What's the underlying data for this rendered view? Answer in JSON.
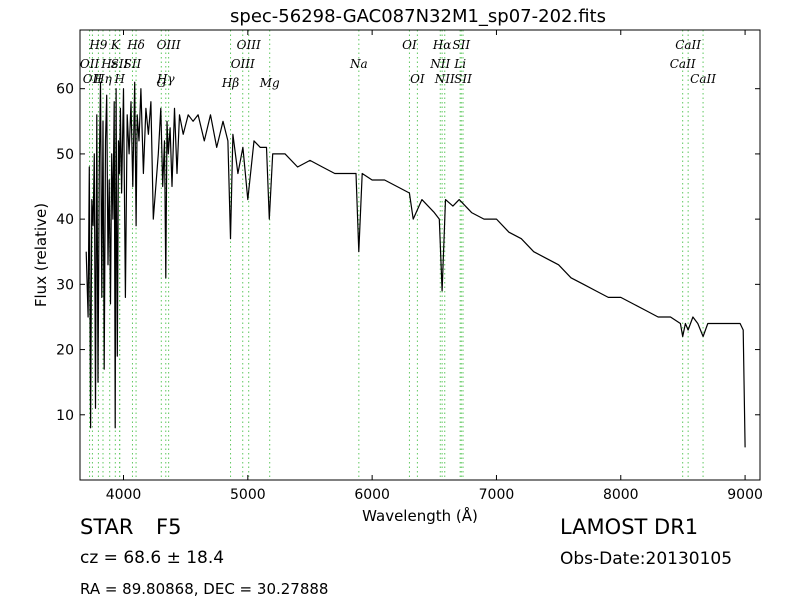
{
  "chart_data": {
    "type": "line",
    "title": "spec-56298-GAC087N32M1_sp07-202.fits",
    "xlabel": "Wavelength (Å)",
    "ylabel": "Flux (relative)",
    "xlim": [
      3650,
      9120
    ],
    "ylim": [
      0,
      69
    ],
    "xticks": [
      4000,
      5000,
      6000,
      7000,
      8000,
      9000
    ],
    "yticks": [
      10,
      20,
      30,
      40,
      50,
      60
    ],
    "grid": false,
    "series": [
      {
        "color": "#000000",
        "x": [
          3700,
          3715,
          3725,
          3735,
          3745,
          3755,
          3765,
          3775,
          3785,
          3795,
          3805,
          3815,
          3825,
          3835,
          3845,
          3855,
          3865,
          3875,
          3885,
          3895,
          3905,
          3915,
          3925,
          3933,
          3940,
          3950,
          3960,
          3968,
          3975,
          3985,
          4000,
          4015,
          4030,
          4045,
          4060,
          4075,
          4090,
          4101,
          4110,
          4125,
          4140,
          4160,
          4180,
          4200,
          4220,
          4240,
          4260,
          4280,
          4300,
          4315,
          4330,
          4340,
          4350,
          4360,
          4375,
          4390,
          4410,
          4430,
          4450,
          4480,
          4520,
          4560,
          4600,
          4650,
          4700,
          4750,
          4800,
          4840,
          4861,
          4880,
          4920,
          4960,
          5000,
          5050,
          5100,
          5150,
          5173,
          5200,
          5250,
          5300,
          5400,
          5500,
          5600,
          5700,
          5800,
          5870,
          5893,
          5920,
          6000,
          6100,
          6200,
          6300,
          6330,
          6400,
          6500,
          6540,
          6563,
          6590,
          6650,
          6700,
          6800,
          6900,
          7000,
          7100,
          7200,
          7300,
          7400,
          7500,
          7600,
          7700,
          7800,
          7900,
          8000,
          8100,
          8200,
          8300,
          8400,
          8480,
          8498,
          8520,
          8542,
          8580,
          8620,
          8662,
          8700,
          8800,
          8900,
          8960,
          8985,
          9000
        ],
        "y": [
          35,
          25,
          48,
          8,
          43,
          39,
          50,
          11,
          56,
          15,
          48,
          61,
          28,
          55,
          17,
          52,
          59,
          33,
          46,
          27,
          50,
          40,
          58,
          8,
          60,
          19,
          52,
          47,
          57,
          44,
          60,
          28,
          56,
          50,
          58,
          45,
          61,
          39,
          56,
          52,
          60,
          47,
          57,
          53,
          58,
          40,
          45,
          50,
          57,
          45,
          52,
          31,
          55,
          50,
          54,
          45,
          57,
          47,
          56,
          53,
          56,
          55,
          56,
          52,
          56,
          51,
          55,
          52,
          37,
          53,
          47,
          51,
          43,
          52,
          51,
          51,
          40,
          50,
          50,
          50,
          48,
          49,
          48,
          47,
          47,
          47,
          35,
          47,
          46,
          46,
          45,
          44,
          40,
          43,
          41,
          40,
          29,
          43,
          42,
          43,
          41,
          40,
          40,
          38,
          37,
          35,
          34,
          33,
          31,
          30,
          29,
          28,
          28,
          27,
          26,
          25,
          25,
          24,
          22,
          24,
          23,
          25,
          24,
          22,
          24,
          24,
          24,
          24,
          23,
          5
        ]
      }
    ],
    "spectral_lines": [
      {
        "wavelength": 3727,
        "label": "OII",
        "row": 1
      },
      {
        "wavelength": 3750,
        "label": "OII",
        "row": 2
      },
      {
        "wavelength": 3798,
        "label": "H9",
        "row": 0
      },
      {
        "wavelength": 3835,
        "label": "Hη",
        "row": 2
      },
      {
        "wavelength": 3889,
        "label": "Hε",
        "row": 1
      },
      {
        "wavelength": 3934,
        "label": "K",
        "row": 0
      },
      {
        "wavelength": 3968,
        "label": "SII",
        "row": 1
      },
      {
        "wavelength": 3970,
        "label": "H",
        "row": 2
      },
      {
        "wavelength": 4072,
        "label": "SII",
        "row": 1
      },
      {
        "wavelength": 4101,
        "label": "Hδ",
        "row": 0
      },
      {
        "wavelength": 4304,
        "label": "G",
        "row": 3
      },
      {
        "wavelength": 4340,
        "label": "Hγ",
        "row": 2
      },
      {
        "wavelength": 4363,
        "label": "OIII",
        "row": 0
      },
      {
        "wavelength": 4861,
        "label": "Hβ",
        "row": 3
      },
      {
        "wavelength": 4959,
        "label": "OIII",
        "row": 1
      },
      {
        "wavelength": 5007,
        "label": "OIII",
        "row": 0
      },
      {
        "wavelength": 5176,
        "label": "Mg",
        "row": 3
      },
      {
        "wavelength": 5893,
        "label": "Na",
        "row": 1
      },
      {
        "wavelength": 6300,
        "label": "OI",
        "row": 0
      },
      {
        "wavelength": 6364,
        "label": "OI",
        "row": 2
      },
      {
        "wavelength": 6548,
        "label": "NII",
        "row": 1
      },
      {
        "wavelength": 6563,
        "label": "Hα",
        "row": 0
      },
      {
        "wavelength": 6584,
        "label": "NII",
        "row": 2
      },
      {
        "wavelength": 6708,
        "label": "Li",
        "row": 1
      },
      {
        "wavelength": 6717,
        "label": "SII",
        "row": 0
      },
      {
        "wavelength": 6731,
        "label": "SII",
        "row": 2
      },
      {
        "wavelength": 8498,
        "label": "CaII",
        "row": 1
      },
      {
        "wavelength": 8542,
        "label": "CaII",
        "row": 0
      },
      {
        "wavelength": 8662,
        "label": "CaII",
        "row": 2
      }
    ],
    "line_marker_color": "#5fc85f"
  },
  "footer": {
    "object_class": "STAR",
    "subclass": "F5",
    "survey": "LAMOST DR1",
    "redshift_text": "cz = 68.6  ± 18.4",
    "obs_date": "Obs-Date:20130105",
    "coords": "RA = 89.80868, DEC = 30.27888"
  }
}
